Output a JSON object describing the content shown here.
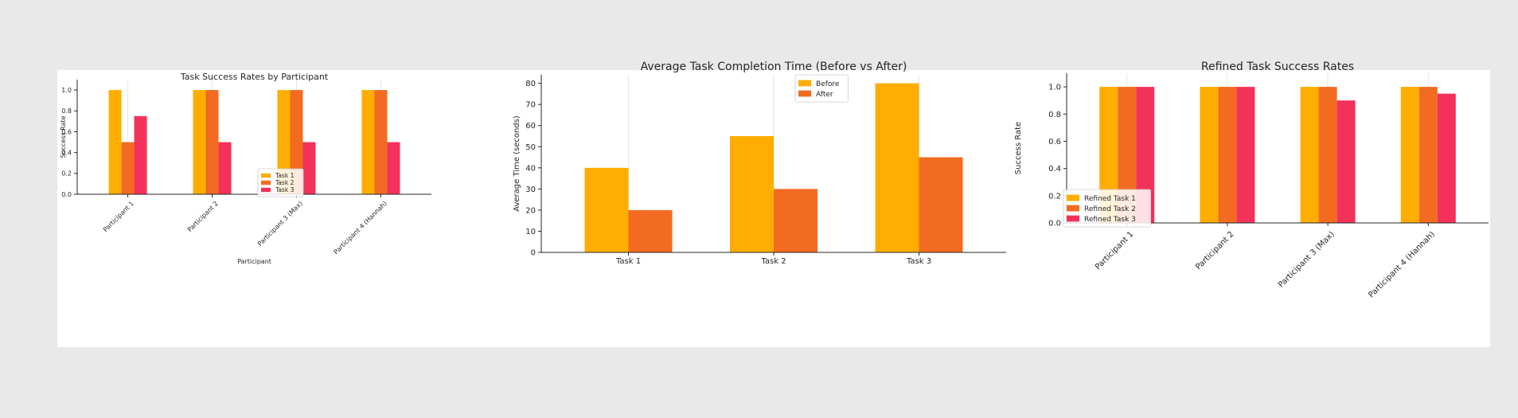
{
  "colors": {
    "c1": "#FFAD00",
    "c2": "#F26B21",
    "c3": "#F2325A",
    "grid": "#e6e6e6",
    "axis": "#262626"
  },
  "chart_data": [
    {
      "type": "bar",
      "title": "Task Success Rates by Participant",
      "xlabel": "Participant",
      "ylabel": "Success Rate",
      "categories": [
        "Participant 1",
        "Participant 2",
        "Participant 3 (Max)",
        "Participant 4 (Hannah)"
      ],
      "series": [
        {
          "name": "Task 1",
          "values": [
            1.0,
            1.0,
            1.0,
            1.0
          ]
        },
        {
          "name": "Task 2",
          "values": [
            0.5,
            1.0,
            1.0,
            1.0
          ]
        },
        {
          "name": "Task 3",
          "values": [
            0.75,
            0.5,
            0.5,
            0.5
          ]
        }
      ],
      "ylim": [
        0,
        1.1
      ],
      "yticks": [
        "0.0",
        "0.2",
        "0.4",
        "0.6",
        "0.8",
        "1.0"
      ],
      "legend": "lower-right",
      "grid": "x"
    },
    {
      "type": "bar",
      "title": "Average Task Completion Time (Before vs After)",
      "xlabel": "",
      "ylabel": "Average Time (seconds)",
      "categories": [
        "Task 1",
        "Task 2",
        "Task 3"
      ],
      "series": [
        {
          "name": "Before",
          "values": [
            40,
            55,
            80
          ]
        },
        {
          "name": "After",
          "values": [
            20,
            30,
            45
          ]
        }
      ],
      "ylim": [
        0,
        84
      ],
      "yticks": [
        "0",
        "10",
        "20",
        "30",
        "40",
        "50",
        "60",
        "70",
        "80"
      ],
      "legend": "upper-right",
      "grid": "x"
    },
    {
      "type": "bar",
      "title": "Refined Task Success Rates",
      "xlabel": "",
      "ylabel": "Success Rate",
      "categories": [
        "Participant 1",
        "Participant 2",
        "Participant 3 (Max)",
        "Participant 4 (Hannah)"
      ],
      "series": [
        {
          "name": "Refined Task 1",
          "values": [
            1.0,
            1.0,
            1.0,
            1.0
          ]
        },
        {
          "name": "Refined Task 2",
          "values": [
            1.0,
            1.0,
            1.0,
            1.0
          ]
        },
        {
          "name": "Refined Task 3",
          "values": [
            1.0,
            1.0,
            0.9,
            0.95
          ]
        }
      ],
      "ylim": [
        0,
        1.1
      ],
      "yticks": [
        "0.0",
        "0.2",
        "0.4",
        "0.6",
        "0.8",
        "1.0"
      ],
      "legend": "lower-center",
      "grid": "x"
    }
  ]
}
